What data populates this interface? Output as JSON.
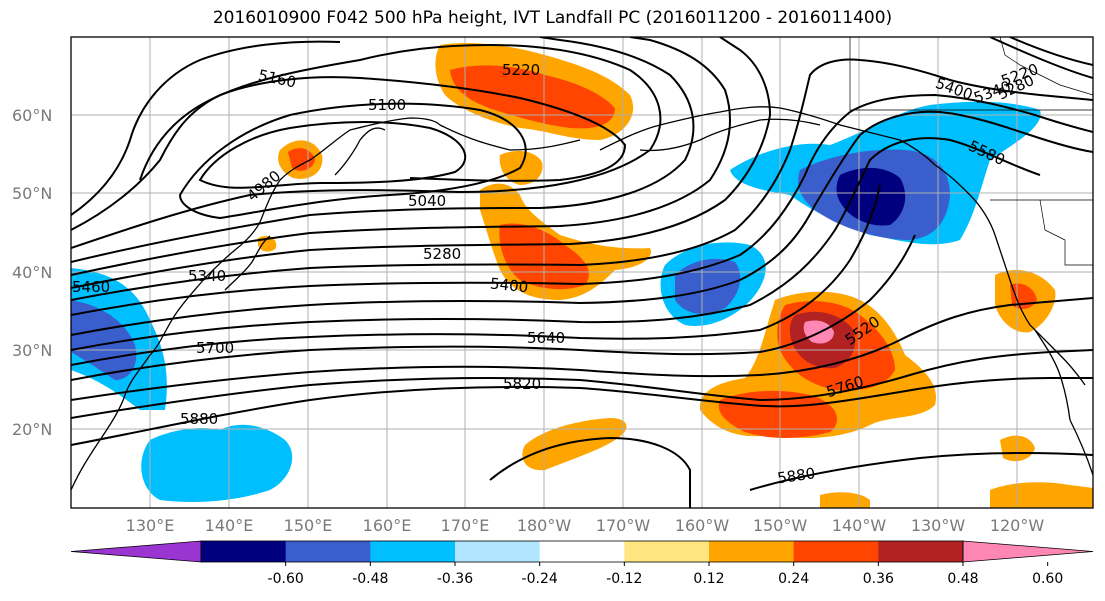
{
  "title": "2016010900 F042 500 hPa height, IVT Landfall PC (2016011200 - 2016011400)",
  "lat_labels": [
    "60°N",
    "50°N",
    "40°N",
    "30°N",
    "20°N"
  ],
  "lon_labels": [
    "130°E",
    "140°E",
    "150°E",
    "160°E",
    "170°E",
    "180°W",
    "170°W",
    "160°W",
    "150°W",
    "140°W",
    "130°W",
    "120°W"
  ],
  "contour_labels": [
    "5160",
    "5220",
    "5100",
    "4980",
    "5040",
    "5280",
    "5400",
    "5340",
    "5460",
    "5700",
    "5640",
    "5820",
    "5880",
    "5880",
    "5520",
    "5760",
    "5580",
    "5400",
    "5340",
    "5280",
    "5220"
  ],
  "colorbar": {
    "ticks": [
      "-0.60",
      "-0.48",
      "-0.36",
      "-0.24",
      "-0.12",
      "0.12",
      "0.24",
      "0.36",
      "0.48",
      "0.60"
    ],
    "colors": [
      "#9a35d2",
      "#00007f",
      "#3a5fcd",
      "#00bfff",
      "#b2e5ff",
      "#ffffff",
      "#ffe680",
      "#ffa500",
      "#ff4500",
      "#b22222",
      "#ff87b4"
    ]
  }
}
